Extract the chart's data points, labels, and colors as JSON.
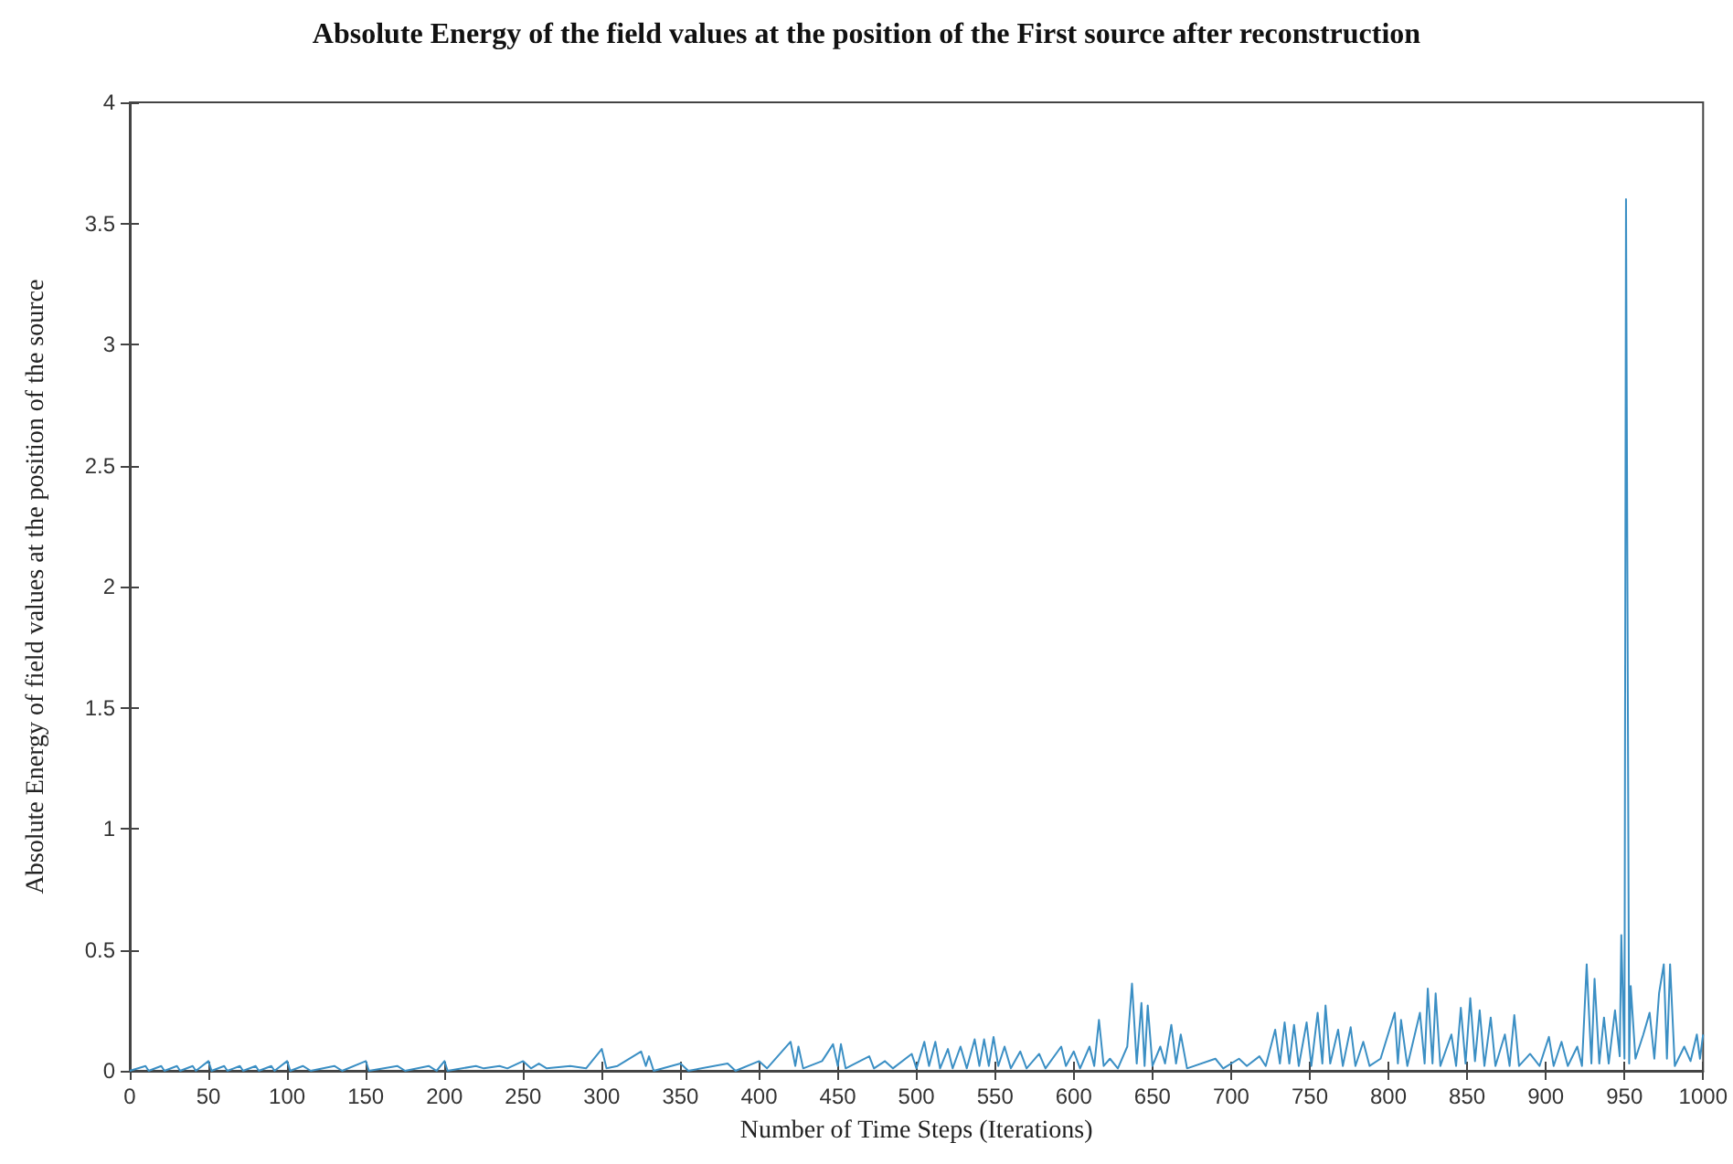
{
  "chart_data": {
    "type": "line",
    "title": "Absolute Energy of the field values at the position of the First source after reconstruction",
    "xlabel": "Number of Time Steps (Iterations)",
    "ylabel": "Absolute Energy of field values at the position of the source",
    "xlim": [
      0,
      1000
    ],
    "xticks": [
      0,
      50,
      100,
      150,
      200,
      250,
      300,
      350,
      400,
      450,
      500,
      550,
      600,
      650,
      700,
      750,
      800,
      850,
      900,
      950,
      1000
    ],
    "ylim": [
      0,
      4
    ],
    "yticks": [
      0,
      0.5,
      1,
      1.5,
      2,
      2.5,
      3,
      3.5,
      4
    ],
    "marker": "none",
    "line_style": "solid",
    "series": [
      {
        "color": "#3b8fc4",
        "x": [
          0,
          10,
          12,
          20,
          22,
          30,
          32,
          40,
          42,
          50,
          52,
          60,
          62,
          70,
          72,
          80,
          82,
          90,
          92,
          100,
          102,
          110,
          115,
          130,
          135,
          150,
          152,
          170,
          175,
          190,
          195,
          200,
          202,
          220,
          225,
          235,
          240,
          250,
          255,
          260,
          265,
          280,
          290,
          300,
          303,
          310,
          325,
          328,
          330,
          333,
          350,
          355,
          380,
          385,
          400,
          405,
          420,
          423,
          425,
          428,
          440,
          447,
          450,
          452,
          455,
          470,
          473,
          480,
          485,
          497,
          500,
          505,
          508,
          512,
          515,
          520,
          523,
          528,
          532,
          537,
          540,
          543,
          546,
          549,
          552,
          556,
          560,
          566,
          570,
          578,
          582,
          592,
          595,
          600,
          604,
          610,
          613,
          616,
          619,
          623,
          628,
          634,
          637,
          640,
          643,
          645,
          647,
          650,
          655,
          658,
          662,
          665,
          668,
          672,
          690,
          695,
          705,
          710,
          718,
          722,
          728,
          731,
          734,
          737,
          740,
          743,
          748,
          751,
          755,
          758,
          760,
          763,
          768,
          771,
          776,
          779,
          784,
          788,
          795,
          804,
          806,
          808,
          812,
          820,
          823,
          825,
          828,
          830,
          833,
          840,
          843,
          846,
          849,
          852,
          855,
          858,
          861,
          865,
          868,
          874,
          877,
          880,
          883,
          890,
          896,
          902,
          905,
          910,
          914,
          920,
          923,
          926,
          929,
          931,
          934,
          937,
          940,
          944,
          947,
          948,
          950,
          951,
          953,
          954,
          957,
          962,
          966,
          969,
          972,
          975,
          977,
          979,
          982,
          988,
          992,
          996,
          998,
          1000
        ],
        "values": [
          0,
          0.02,
          0,
          0.02,
          0,
          0.02,
          0,
          0.02,
          0,
          0.04,
          0,
          0.02,
          0,
          0.02,
          0,
          0.02,
          0,
          0.02,
          0,
          0.04,
          0,
          0.02,
          0,
          0.02,
          0,
          0.04,
          0,
          0.02,
          0,
          0.02,
          0,
          0.04,
          0,
          0.02,
          0.01,
          0.02,
          0.01,
          0.04,
          0.01,
          0.03,
          0.01,
          0.02,
          0.01,
          0.09,
          0.01,
          0.02,
          0.08,
          0.02,
          0.06,
          0,
          0.03,
          0,
          0.03,
          0,
          0.04,
          0.01,
          0.12,
          0.02,
          0.1,
          0.01,
          0.04,
          0.11,
          0.02,
          0.11,
          0.01,
          0.06,
          0.01,
          0.04,
          0.01,
          0.07,
          0.01,
          0.12,
          0.02,
          0.12,
          0.01,
          0.09,
          0.01,
          0.1,
          0.01,
          0.13,
          0.02,
          0.13,
          0.02,
          0.14,
          0.02,
          0.1,
          0.01,
          0.08,
          0.01,
          0.07,
          0.01,
          0.1,
          0.02,
          0.08,
          0.01,
          0.1,
          0.02,
          0.21,
          0.02,
          0.05,
          0.01,
          0.1,
          0.36,
          0.03,
          0.28,
          0.02,
          0.27,
          0.02,
          0.1,
          0.03,
          0.19,
          0.03,
          0.15,
          0.01,
          0.05,
          0.01,
          0.05,
          0.02,
          0.06,
          0.02,
          0.17,
          0.03,
          0.2,
          0.03,
          0.19,
          0.02,
          0.2,
          0.02,
          0.24,
          0.03,
          0.27,
          0.03,
          0.17,
          0.02,
          0.18,
          0.02,
          0.12,
          0.02,
          0.05,
          0.24,
          0.03,
          0.21,
          0.02,
          0.24,
          0.03,
          0.34,
          0.03,
          0.32,
          0.02,
          0.15,
          0.02,
          0.26,
          0.03,
          0.3,
          0.04,
          0.25,
          0.02,
          0.22,
          0.02,
          0.15,
          0.02,
          0.23,
          0.02,
          0.07,
          0.02,
          0.14,
          0.02,
          0.12,
          0.02,
          0.1,
          0.02,
          0.44,
          0.03,
          0.38,
          0.03,
          0.22,
          0.03,
          0.25,
          0.06,
          0.56,
          0.05,
          3.6,
          0.03,
          0.35,
          0.05,
          0.15,
          0.24,
          0.05,
          0.32,
          0.44,
          0.05,
          0.44,
          0.02,
          0.1,
          0.04,
          0.15,
          0.05,
          0.15
        ]
      }
    ]
  }
}
